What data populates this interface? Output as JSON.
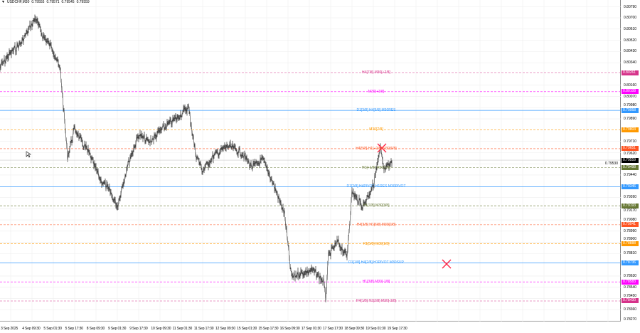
{
  "header": {
    "symbol": "USDCHF,M30",
    "open": "0.79555",
    "high": "0.79571",
    "low": "0.79545",
    "close": "0.79559"
  },
  "current_price": {
    "value": "0.79559",
    "color": "#000000"
  },
  "price_axis": [
    "0.80790",
    "0.80700",
    "0.80610",
    "0.80520",
    "0.80430",
    "0.80340",
    "0.80160",
    "0.80070",
    "0.79980",
    "0.79890",
    "0.79710",
    "0.79620",
    "0.79530",
    "0.79440",
    "0.79260",
    "0.79170",
    "0.79080",
    "0.78990",
    "0.78900",
    "0.78810",
    "0.78630",
    "0.78540",
    "0.78450",
    "0.78360",
    "0.78270"
  ],
  "time_axis": [
    "3 Sep 2025",
    "4 Sep 09:30",
    "5 Sep 01:30",
    "5 Sep 17:30",
    "8 Sep 09:30",
    "9 Sep 01:30",
    "9 Sep 17:30",
    "10 Sep 09:30",
    "11 Sep 01:30",
    "11 Sep 17:30",
    "12 Sep 09:30",
    "15 Sep 01:30",
    "15 Sep 17:30",
    "16 Sep 09:30",
    "17 Sep 01:30",
    "17 Sep 17:30",
    "18 Sep 09:30",
    "19 Sep 01:30",
    "19 Sep 17:30"
  ],
  "levels": [
    {
      "label": "H4[7/8] M30[+2/8]",
      "price": "0.80261",
      "color": "#d6338a",
      "style": "dash"
    },
    {
      "label": "M30[+1/8]",
      "price": "0.80108",
      "color": "#ff00ff",
      "style": "dash"
    },
    {
      "label": "D1[3/8] H4[6/8] M30RES",
      "price": "0.79958",
      "color": "#3399ff",
      "style": "solid"
    },
    {
      "label": "M30[7/8]",
      "price": "0.79803",
      "color": "#ff9900",
      "style": "dash"
    },
    {
      "label": "H4[5/8] H1[+2/8] M30[6/8]",
      "price": "0.79651",
      "color": "#ff5522",
      "style": "dash"
    },
    {
      "label": "H1[+1/8] M30[5/8]",
      "price": "0.79498",
      "color": "#667733",
      "style": "dash"
    },
    {
      "label": "D1[2/8] H4PIVOT H1RES M30PIVOT",
      "price": "0.79346",
      "color": "#3399ff",
      "style": "solid"
    },
    {
      "label": "H1[7/8] M30[3/8]",
      "price": "0.79193",
      "color": "#667733",
      "style": "dash"
    },
    {
      "label": "H4[3/8] H1[6/8] M30[2/8]",
      "price": "0.79041",
      "color": "#ff5522",
      "style": "dash"
    },
    {
      "label": "H1[5/8] M30[1/8]",
      "price": "0.78888",
      "color": "#ff9900",
      "style": "dash"
    },
    {
      "label": "D1[1/8] H4[2/8] H1PIVOT M30SUP",
      "price": "0.78736",
      "color": "#3399ff",
      "style": "solid"
    },
    {
      "label": "H1[3/8] M30[-1/8]",
      "price": "0.78583",
      "color": "#ff00ff",
      "style": "dash"
    },
    {
      "label": "H4[1/8] H1[2/8] M30[-2/8]",
      "price": "0.78430",
      "color": "#d6338a",
      "style": "dash"
    }
  ],
  "markers": [
    {
      "icon": "cross-icon",
      "color": "#ff2244"
    },
    {
      "icon": "cross-icon",
      "color": "#ff2244"
    }
  ]
}
